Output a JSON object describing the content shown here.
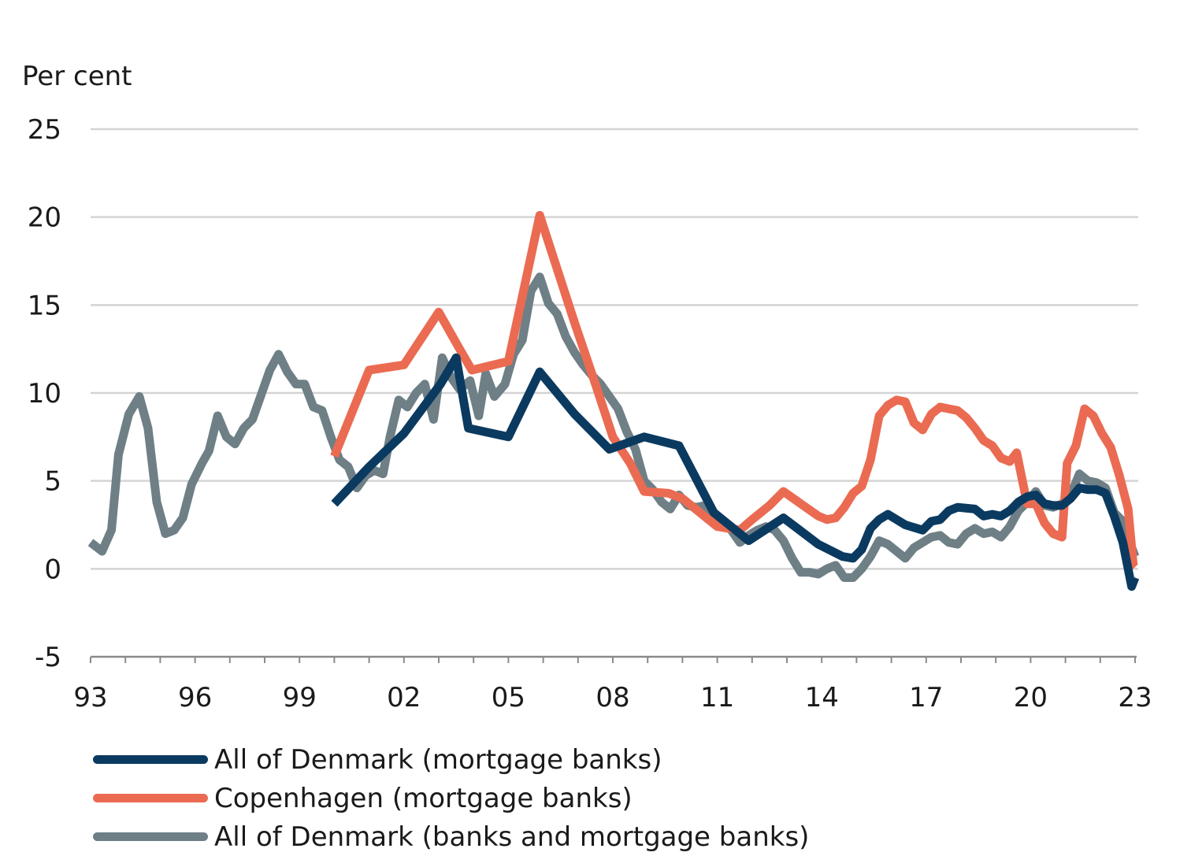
{
  "chart_data": {
    "type": "line",
    "ylabel": "Per cent",
    "ylim": [
      -5,
      25
    ],
    "yticks": [
      25,
      20,
      15,
      10,
      5,
      0,
      -5
    ],
    "xlim": [
      1993,
      2023
    ],
    "xticks": [
      {
        "value": 1993,
        "label": "93"
      },
      {
        "value": 1996,
        "label": "96"
      },
      {
        "value": 1999,
        "label": "99"
      },
      {
        "value": 2002,
        "label": "02"
      },
      {
        "value": 2005,
        "label": "05"
      },
      {
        "value": 2008,
        "label": "08"
      },
      {
        "value": 2011,
        "label": "11"
      },
      {
        "value": 2014,
        "label": "14"
      },
      {
        "value": 2017,
        "label": "17"
      },
      {
        "value": 2020,
        "label": "20"
      },
      {
        "value": 2023,
        "label": "23"
      }
    ],
    "grid": true,
    "legend_placement": "bottom",
    "series": [
      {
        "name": "All of Denmark (banks and mortgage banks)",
        "color": "#6e7f86",
        "x": [
          1993.0,
          1993.33,
          1993.6,
          1993.8,
          1994.1,
          1994.4,
          1994.65,
          1994.9,
          1995.15,
          1995.4,
          1995.65,
          1995.9,
          1996.2,
          1996.4,
          1996.65,
          1996.9,
          1997.15,
          1997.4,
          1997.65,
          1997.9,
          1998.15,
          1998.4,
          1998.65,
          1998.9,
          1999.15,
          1999.4,
          1999.65,
          1999.9,
          2000.15,
          2000.4,
          2000.65,
          2000.9,
          2001.15,
          2001.4,
          2001.6,
          2001.85,
          2002.1,
          2002.35,
          2002.6,
          2002.85,
          2003.1,
          2003.35,
          2003.6,
          2003.9,
          2004.15,
          2004.35,
          2004.6,
          2004.9,
          2005.15,
          2005.4,
          2005.65,
          2005.9,
          2006.15,
          2006.4,
          2006.65,
          2006.9,
          2007.15,
          2007.4,
          2007.65,
          2007.9,
          2008.15,
          2008.4,
          2008.65,
          2008.9,
          2009.15,
          2009.4,
          2009.65,
          2009.9,
          2010.15,
          2010.4,
          2010.65,
          2010.9,
          2011.15,
          2011.4,
          2011.65,
          2011.9,
          2012.15,
          2012.4,
          2012.65,
          2012.9,
          2013.15,
          2013.4,
          2013.65,
          2013.9,
          2014.15,
          2014.4,
          2014.65,
          2014.9,
          2015.15,
          2015.4,
          2015.65,
          2015.9,
          2016.15,
          2016.4,
          2016.65,
          2016.9,
          2017.15,
          2017.4,
          2017.65,
          2017.9,
          2018.15,
          2018.4,
          2018.65,
          2018.9,
          2019.15,
          2019.4,
          2019.65,
          2019.9,
          2020.15,
          2020.4,
          2020.65,
          2020.9,
          2021.15,
          2021.4,
          2021.65,
          2021.9,
          2022.15,
          2022.4,
          2022.65,
          2022.85,
          2023.0
        ],
        "y": [
          1.5,
          1.0,
          2.2,
          6.5,
          8.8,
          9.8,
          8.0,
          3.8,
          2.0,
          2.2,
          2.9,
          4.8,
          6.0,
          6.7,
          8.7,
          7.5,
          7.1,
          8.0,
          8.5,
          9.9,
          11.3,
          12.2,
          11.2,
          10.5,
          10.5,
          9.2,
          9.0,
          7.5,
          6.2,
          5.8,
          4.6,
          5.3,
          5.6,
          5.4,
          7.5,
          9.6,
          9.2,
          10.0,
          10.5,
          8.5,
          12.0,
          10.9,
          10.2,
          10.7,
          8.7,
          11.1,
          9.8,
          10.5,
          12.2,
          13.0,
          15.8,
          16.6,
          15.1,
          14.5,
          13.2,
          12.3,
          11.6,
          11.0,
          10.5,
          9.8,
          9.1,
          7.8,
          6.8,
          5.0,
          4.5,
          3.8,
          3.4,
          4.2,
          3.6,
          3.5,
          3.6,
          3.0,
          2.6,
          2.2,
          1.5,
          1.9,
          2.2,
          2.4,
          2.2,
          1.6,
          0.6,
          -0.2,
          -0.2,
          -0.3,
          0.0,
          0.2,
          -0.5,
          -0.5,
          0.0,
          0.7,
          1.6,
          1.4,
          1.0,
          0.6,
          1.2,
          1.5,
          1.8,
          1.9,
          1.5,
          1.4,
          2.0,
          2.3,
          2.0,
          2.1,
          1.8,
          2.4,
          3.3,
          3.8,
          4.4,
          3.6,
          3.5,
          3.7,
          4.2,
          5.4,
          5.0,
          4.9,
          4.6,
          3.2,
          2.7,
          1.5,
          0.7
        ]
      },
      {
        "name": "Copenhagen (mortgage banks)",
        "color": "#ea6b52",
        "x": [
          2000.0,
          2001.0,
          2002.0,
          2003.0,
          2003.6,
          2003.95,
          2005.0,
          2005.9,
          2006.9,
          2007.5,
          2008.0,
          2008.5,
          2008.9,
          2009.6,
          2010.0,
          2010.5,
          2011.0,
          2011.65,
          2012.0,
          2012.5,
          2012.9,
          2013.4,
          2013.9,
          2014.15,
          2014.4,
          2014.65,
          2014.9,
          2015.15,
          2015.4,
          2015.65,
          2015.9,
          2016.15,
          2016.4,
          2016.65,
          2016.9,
          2017.15,
          2017.4,
          2017.65,
          2017.9,
          2018.15,
          2018.4,
          2018.65,
          2018.9,
          2019.15,
          2019.4,
          2019.6,
          2019.9,
          2020.15,
          2020.4,
          2020.65,
          2020.9,
          2021.05,
          2021.3,
          2021.55,
          2021.8,
          2022.05,
          2022.3,
          2022.55,
          2022.8,
          2022.95,
          2023.0
        ],
        "y": [
          6.4,
          11.3,
          11.6,
          14.6,
          12.5,
          11.3,
          11.8,
          20.1,
          14.0,
          10.5,
          7.5,
          6.0,
          4.4,
          4.3,
          4.0,
          3.2,
          2.4,
          2.2,
          2.8,
          3.6,
          4.4,
          3.7,
          3.0,
          2.8,
          2.9,
          3.5,
          4.3,
          4.7,
          6.2,
          8.7,
          9.3,
          9.6,
          9.5,
          8.3,
          7.9,
          8.8,
          9.2,
          9.1,
          9.0,
          8.6,
          8.0,
          7.3,
          7.0,
          6.3,
          6.1,
          6.6,
          3.7,
          3.7,
          2.6,
          2.0,
          1.8,
          6.0,
          7.0,
          9.1,
          8.7,
          7.7,
          6.9,
          5.3,
          3.4,
          0.2,
          0.1
        ]
      },
      {
        "name": "All of Denmark (mortgage banks)",
        "color": "#0b3a60",
        "x": [
          2000.0,
          2001.0,
          2002.0,
          2003.05,
          2003.5,
          2003.85,
          2005.0,
          2005.9,
          2006.9,
          2007.9,
          2008.9,
          2009.9,
          2010.9,
          2011.9,
          2012.9,
          2013.9,
          2014.6,
          2014.9,
          2015.15,
          2015.4,
          2015.65,
          2015.9,
          2016.4,
          2016.9,
          2017.15,
          2017.4,
          2017.65,
          2017.9,
          2018.4,
          2018.65,
          2018.9,
          2019.15,
          2019.4,
          2019.65,
          2019.9,
          2020.15,
          2020.4,
          2020.65,
          2020.9,
          2021.15,
          2021.4,
          2021.65,
          2021.9,
          2022.15,
          2022.4,
          2022.65,
          2022.9,
          2023.0
        ],
        "y": [
          3.7,
          5.8,
          7.7,
          10.5,
          12.0,
          8.0,
          7.5,
          11.2,
          8.8,
          6.8,
          7.5,
          7.0,
          3.2,
          1.6,
          2.9,
          1.4,
          0.7,
          0.6,
          1.1,
          2.3,
          2.8,
          3.1,
          2.5,
          2.2,
          2.7,
          2.8,
          3.3,
          3.5,
          3.4,
          3.0,
          3.1,
          3.0,
          3.3,
          3.8,
          4.1,
          4.2,
          3.7,
          3.6,
          3.6,
          4.0,
          4.6,
          4.5,
          4.5,
          4.3,
          3.0,
          1.5,
          -1.0,
          -0.5
        ]
      }
    ],
    "legend": [
      "All of Denmark (mortgage banks)",
      "Copenhagen (mortgage banks)",
      "All of Denmark (banks and mortgage banks)"
    ]
  }
}
